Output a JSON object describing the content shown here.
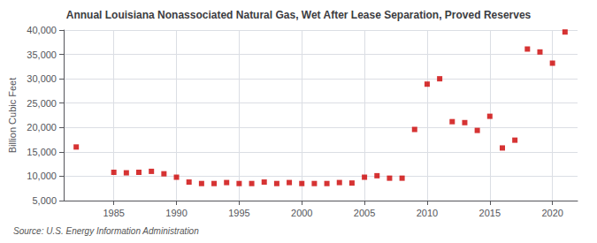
{
  "chart_data": {
    "type": "scatter",
    "title": "Annual Louisiana Nonassociated Natural Gas, Wet After Lease Separation, Proved Reserves",
    "ylabel": "Billion Cubic Feet",
    "source": "Source: U.S. Energy Information Administration",
    "x": [
      1982,
      1985,
      1986,
      1987,
      1988,
      1989,
      1990,
      1991,
      1992,
      1993,
      1994,
      1995,
      1996,
      1997,
      1998,
      1999,
      2000,
      2001,
      2002,
      2003,
      2004,
      2005,
      2006,
      2007,
      2008,
      2009,
      2010,
      2011,
      2012,
      2013,
      2014,
      2015,
      2016,
      2017,
      2018,
      2019,
      2020,
      2021
    ],
    "values": [
      16000,
      10800,
      10700,
      10800,
      11000,
      10500,
      9800,
      8800,
      8500,
      8500,
      8700,
      8500,
      8500,
      8800,
      8500,
      8700,
      8500,
      8500,
      8500,
      8700,
      8600,
      9800,
      10100,
      9600,
      9600,
      19600,
      28900,
      30000,
      21200,
      21000,
      19400,
      22300,
      15800,
      17400,
      36100,
      35500,
      33200,
      39600
    ],
    "color": "#cc0000",
    "marker": "square",
    "xlim": [
      1981,
      2022
    ],
    "xticks": [
      1985,
      1990,
      1995,
      2000,
      2005,
      2010,
      2015,
      2020
    ],
    "ylim": [
      5000,
      40000
    ],
    "yticks": [
      {
        "value": 5000,
        "label": "5,000"
      },
      {
        "value": 10000,
        "label": "10,000"
      },
      {
        "value": 15000,
        "label": "15,000"
      },
      {
        "value": 20000,
        "label": "20,000"
      },
      {
        "value": 25000,
        "label": "25,000"
      },
      {
        "value": 30000,
        "label": "30,000"
      },
      {
        "value": 35000,
        "label": "35,000"
      },
      {
        "value": 40000,
        "label": "40,000"
      }
    ],
    "grid": true
  }
}
